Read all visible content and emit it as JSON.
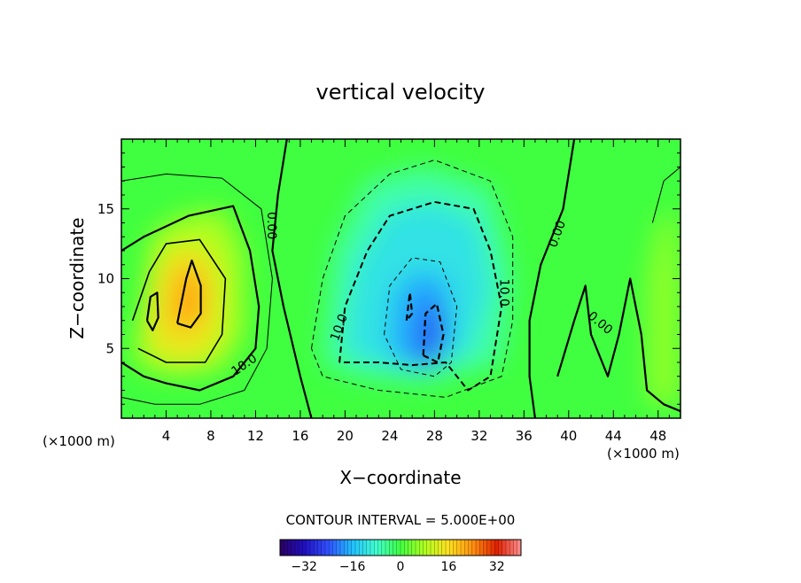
{
  "chart_data": {
    "type": "heatmap",
    "title": "vertical velocity",
    "xlabel": "X−coordinate",
    "ylabel": "Z−coordinate",
    "x_unit_left": "(×1000 m)",
    "x_unit_right": "(×1000 m)",
    "xlim": [
      0,
      50
    ],
    "ylim": [
      0,
      20
    ],
    "x_ticks": [
      4,
      8,
      12,
      16,
      20,
      24,
      28,
      32,
      36,
      40,
      44,
      48
    ],
    "x_tick_labels": [
      "4",
      "8",
      "12",
      "16",
      "20",
      "24",
      "28",
      "32",
      "36",
      "40",
      "44",
      "48"
    ],
    "y_ticks": [
      5,
      10,
      15
    ],
    "y_tick_labels": [
      "5",
      "10",
      "15"
    ],
    "contour_interval_text": "CONTOUR INTERVAL = 5.000E+00",
    "colorbar": {
      "range": [
        -40,
        40
      ],
      "ticks": [
        -32,
        -16,
        0,
        16,
        32
      ],
      "tick_labels": [
        "−32",
        "−16",
        "0",
        "16",
        "32"
      ],
      "colormap": "rainbow",
      "colors": [
        "#2a0060",
        "#1f10c0",
        "#3050ff",
        "#20c0ff",
        "#40ffd0",
        "#40ff40",
        "#b0ff20",
        "#ffe020",
        "#ff9010",
        "#e02000",
        "#ff9090"
      ]
    },
    "background_value": 0,
    "features": [
      {
        "kind": "updraft",
        "x": 5.5,
        "z": 8.5,
        "peak": 22
      },
      {
        "kind": "updraft",
        "x": 2.5,
        "z": 8.0,
        "peak": 8
      },
      {
        "kind": "downdraft",
        "x": 27.5,
        "z": 6.5,
        "peak": -25
      },
      {
        "kind": "downdraft",
        "x": 25.5,
        "z": 8.5,
        "peak": -10
      },
      {
        "kind": "downdraft",
        "x": 28.0,
        "z": 12.5,
        "peak": -6
      }
    ],
    "contour_labels": [
      {
        "text": "10.0",
        "x": 11.0,
        "z": 3.8
      },
      {
        "text": "0.00",
        "x": 13.4,
        "z": 13.8
      },
      {
        "text": "10.0",
        "x": 19.5,
        "z": 6.5
      },
      {
        "text": "10.0",
        "x": 34.2,
        "z": 9.0
      },
      {
        "text": "0.00",
        "x": 39.0,
        "z": 13.2
      },
      {
        "text": "0.00",
        "x": 42.8,
        "z": 6.8
      }
    ]
  }
}
